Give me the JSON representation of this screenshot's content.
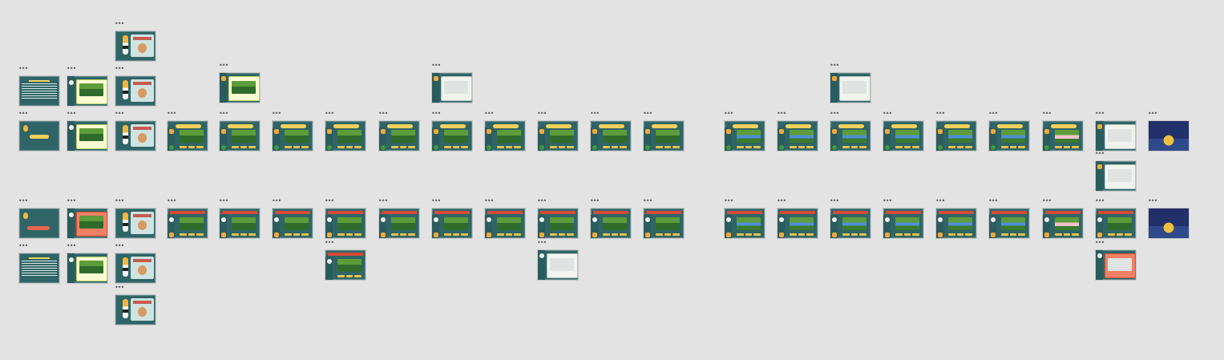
{
  "canvas": {
    "background": "#e3e3e3",
    "frame_menu_glyph": "•••",
    "frame_background": "#2f6566",
    "accent_yellow": "#f3d15b",
    "accent_red": "#e7654f",
    "accent_green": "#3f9a3a"
  },
  "frame_kinds": [
    "text-intro",
    "pin-button",
    "lesson-card",
    "mascot-dialog",
    "scene-card",
    "scene-feedback",
    "photo-card",
    "night-scene"
  ],
  "frames": {
    "f01": {
      "kind": "mascot-dialog",
      "icon": "mascot-icon"
    },
    "f02": {
      "kind": "text-intro",
      "icon": "text-icon"
    },
    "f03": {
      "kind": "lesson-card",
      "icon": "lesson-icon"
    },
    "f04": {
      "kind": "mascot-dialog",
      "icon": "mascot-icon"
    },
    "f05": {
      "kind": "photo-card",
      "icon": "photo-icon"
    },
    "f06": {
      "kind": "photo-card",
      "icon": "photo-icon"
    },
    "f07": {
      "kind": "photo-card",
      "icon": "photo-icon"
    },
    "f08": {
      "kind": "pin-button",
      "icon": "pin-icon"
    },
    "f09": {
      "kind": "lesson-card",
      "icon": "lesson-icon"
    },
    "f10": {
      "kind": "mascot-dialog",
      "icon": "mascot-icon"
    },
    "f11": {
      "kind": "scene-card",
      "icon": "scene-icon"
    },
    "f12": {
      "kind": "scene-card",
      "icon": "scene-icon"
    },
    "f13": {
      "kind": "scene-card",
      "icon": "scene-icon"
    },
    "f14": {
      "kind": "scene-card",
      "icon": "scene-icon"
    },
    "f15": {
      "kind": "scene-card",
      "icon": "scene-icon"
    },
    "f16": {
      "kind": "scene-card",
      "icon": "scene-icon"
    },
    "f17": {
      "kind": "scene-card",
      "icon": "scene-icon"
    },
    "f18": {
      "kind": "scene-card",
      "icon": "scene-icon"
    },
    "f19": {
      "kind": "scene-card",
      "icon": "scene-icon"
    },
    "f20": {
      "kind": "scene-card",
      "icon": "scene-icon"
    },
    "f21": {
      "kind": "scene-card",
      "icon": "water-scene-icon"
    },
    "f22": {
      "kind": "scene-card",
      "icon": "water-scene-icon"
    },
    "f23": {
      "kind": "scene-card",
      "icon": "water-scene-icon"
    },
    "f24": {
      "kind": "scene-card",
      "icon": "water-scene-icon"
    },
    "f25": {
      "kind": "scene-card",
      "icon": "water-scene-icon"
    },
    "f26": {
      "kind": "scene-card",
      "icon": "water-scene-icon"
    },
    "f27": {
      "kind": "scene-card",
      "icon": "pink-scene-icon"
    },
    "f28": {
      "kind": "photo-card",
      "icon": "photo-icon"
    },
    "f29": {
      "kind": "night-scene",
      "icon": "night-scene-icon"
    },
    "f30": {
      "kind": "photo-card",
      "icon": "photo-icon"
    },
    "f31": {
      "kind": "pin-button",
      "icon": "pin-icon"
    },
    "f32": {
      "kind": "lesson-card",
      "icon": "lesson-icon"
    },
    "f33": {
      "kind": "mascot-dialog",
      "icon": "mascot-icon"
    },
    "f34": {
      "kind": "scene-feedback",
      "icon": "feedback-icon"
    },
    "f35": {
      "kind": "scene-feedback",
      "icon": "feedback-icon"
    },
    "f36": {
      "kind": "scene-feedback",
      "icon": "feedback-icon"
    },
    "f37": {
      "kind": "scene-feedback",
      "icon": "feedback-icon"
    },
    "f38": {
      "kind": "scene-feedback",
      "icon": "feedback-icon"
    },
    "f39": {
      "kind": "scene-feedback",
      "icon": "feedback-icon"
    },
    "f40": {
      "kind": "scene-feedback",
      "icon": "feedback-icon"
    },
    "f41": {
      "kind": "scene-feedback",
      "icon": "feedback-icon"
    },
    "f42": {
      "kind": "scene-feedback",
      "icon": "feedback-icon"
    },
    "f43": {
      "kind": "scene-feedback",
      "icon": "feedback-icon"
    },
    "f44": {
      "kind": "scene-feedback",
      "icon": "water-feedback-icon"
    },
    "f45": {
      "kind": "scene-feedback",
      "icon": "water-feedback-icon"
    },
    "f46": {
      "kind": "scene-feedback",
      "icon": "water-feedback-icon"
    },
    "f47": {
      "kind": "scene-feedback",
      "icon": "water-feedback-icon"
    },
    "f48": {
      "kind": "scene-feedback",
      "icon": "water-feedback-icon"
    },
    "f49": {
      "kind": "scene-feedback",
      "icon": "water-feedback-icon"
    },
    "f50": {
      "kind": "scene-feedback",
      "icon": "pink-feedback-icon"
    },
    "f51": {
      "kind": "scene-feedback",
      "icon": "feedback-icon"
    },
    "f52": {
      "kind": "night-scene",
      "icon": "night-scene-icon"
    },
    "f53": {
      "kind": "text-intro",
      "icon": "text-icon"
    },
    "f54": {
      "kind": "lesson-card",
      "icon": "lesson-icon"
    },
    "f55": {
      "kind": "mascot-dialog",
      "icon": "mascot-icon"
    },
    "f56": {
      "kind": "scene-feedback",
      "icon": "feedback-icon"
    },
    "f57": {
      "kind": "scene-feedback",
      "icon": "photo-feedback-icon"
    },
    "f58": {
      "kind": "scene-feedback",
      "icon": "photo-feedback-icon"
    },
    "f59": {
      "kind": "mascot-dialog",
      "icon": "mascot-icon"
    }
  }
}
